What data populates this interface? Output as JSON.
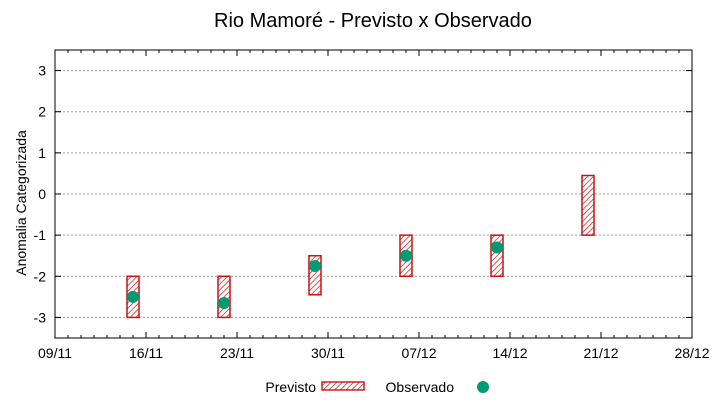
{
  "chart_data": {
    "type": "range-bar-with-points",
    "title": "Rio Mamoré - Previsto x Observado",
    "xlabel": "",
    "ylabel": "Anomalia Categorizada",
    "x_ticks": [
      "09/11",
      "16/11",
      "23/11",
      "30/11",
      "07/12",
      "14/12",
      "21/12",
      "28/12"
    ],
    "xlim_days": [
      0,
      49
    ],
    "y_ticks": [
      "3",
      "2",
      "1",
      "0",
      "-1",
      "-2",
      "-3"
    ],
    "y_tick_values": [
      3,
      2,
      1,
      0,
      -1,
      -2,
      -3
    ],
    "ylim": [
      -3.5,
      3.5
    ],
    "grid": true,
    "series": [
      {
        "name": "Previsto",
        "kind": "range",
        "points": [
          {
            "day": 6,
            "low": -3.0,
            "high": -2.0
          },
          {
            "day": 13,
            "low": -3.0,
            "high": -2.0
          },
          {
            "day": 20,
            "low": -2.45,
            "high": -1.5
          },
          {
            "day": 27,
            "low": -2.0,
            "high": -1.0
          },
          {
            "day": 34,
            "low": -2.0,
            "high": -1.0
          },
          {
            "day": 41,
            "low": -1.0,
            "high": 0.45
          }
        ]
      },
      {
        "name": "Observado",
        "kind": "point",
        "points": [
          {
            "day": 6,
            "y": -2.5
          },
          {
            "day": 13,
            "y": -2.65
          },
          {
            "day": 20,
            "y": -1.75
          },
          {
            "day": 27,
            "y": -1.5
          },
          {
            "day": 34,
            "y": -1.3
          }
        ]
      }
    ],
    "legend": [
      {
        "label": "Previsto",
        "symbol": "hatched-box"
      },
      {
        "label": "Observado",
        "symbol": "dot"
      }
    ],
    "legend_position": "bottom-center",
    "colors": {
      "range_stroke": "#cc1111",
      "range_hatch": "#cc1111",
      "point_fill": "#009b72",
      "grid": "#a0a0a0",
      "axis": "#000000"
    }
  }
}
